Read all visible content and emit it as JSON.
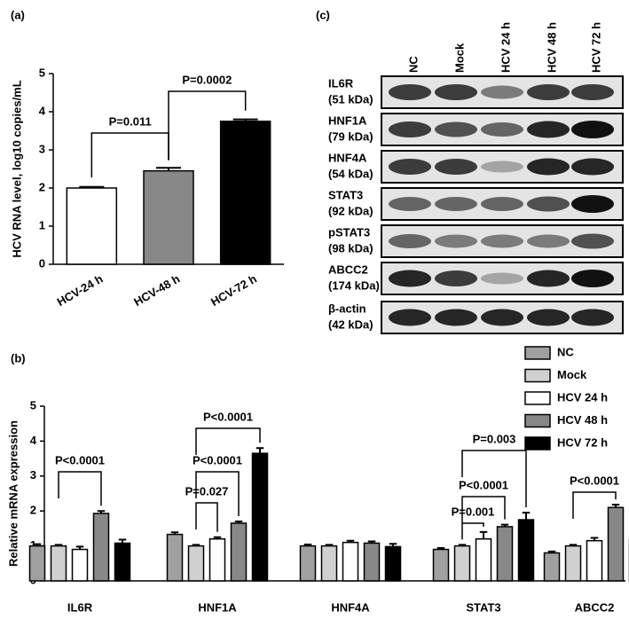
{
  "chart_data": [
    {
      "type": "bar",
      "label": "(a)",
      "y_label": "HCV RNA level, log10 copies/mL",
      "categories": [
        "HCV-24 h",
        "HCV-48 h",
        "HCV-72 h"
      ],
      "values": [
        2.0,
        2.45,
        3.75
      ],
      "errors": [
        0.03,
        0.08,
        0.05
      ],
      "colors": [
        "#ffffff",
        "#888888",
        "#000000"
      ],
      "ylim": [
        0,
        5
      ],
      "yticks": [
        0,
        1,
        2,
        3,
        4,
        5
      ],
      "annotations": [
        "P=0.011",
        "P=0.0002"
      ]
    },
    {
      "type": "grouped_bar",
      "label": "(b)",
      "y_label": "Relative mRNA expression",
      "categories": [
        "IL6R",
        "HNF1A",
        "HNF4A",
        "STAT3",
        "ABCC2"
      ],
      "series": [
        {
          "name": "NC",
          "color": "#a0a0a0",
          "values": [
            1.0,
            1.33,
            1.0,
            0.9,
            0.8
          ],
          "errors": [
            0.05,
            0.06,
            0.04,
            0.04,
            0.04
          ]
        },
        {
          "name": "Mock",
          "color": "#d0d0d0",
          "values": [
            1.0,
            1.0,
            1.0,
            1.0,
            1.0
          ],
          "errors": [
            0.03,
            0.03,
            0.03,
            0.03,
            0.03
          ]
        },
        {
          "name": "HCV 24 h",
          "color": "#ffffff",
          "values": [
            0.9,
            1.2,
            1.1,
            1.2,
            1.15
          ],
          "errors": [
            0.08,
            0.05,
            0.05,
            0.2,
            0.08
          ]
        },
        {
          "name": "HCV 48 h",
          "color": "#888888",
          "values": [
            1.93,
            1.65,
            1.08,
            1.55,
            2.1
          ],
          "errors": [
            0.07,
            0.05,
            0.05,
            0.06,
            0.08
          ]
        },
        {
          "name": "HCV 72 h",
          "color": "#000000",
          "values": [
            1.08,
            3.65,
            0.98,
            1.75,
            1.18
          ],
          "errors": [
            0.1,
            0.15,
            0.08,
            0.2,
            0.1
          ]
        }
      ],
      "ylim": [
        0,
        5
      ],
      "yticks": [
        0,
        1,
        2,
        3,
        4,
        5
      ],
      "annotations": [
        "P<0.0001",
        "P<0.0001",
        "P<0.0001",
        "P=0.027",
        "P=0.003",
        "P<0.0001",
        "P=0.001",
        "P<0.0001"
      ]
    }
  ],
  "blot": {
    "label": "(c)",
    "lanes": [
      "NC",
      "Mock",
      "HCV 24 h",
      "HCV 48 h",
      "HCV 72 h"
    ],
    "rows": [
      {
        "name": "IL6R",
        "size": "(51 kDa)"
      },
      {
        "name": "HNF1A",
        "size": "(79 kDa)"
      },
      {
        "name": "HNF4A",
        "size": "(54 kDa)"
      },
      {
        "name": "STAT3",
        "size": "(92 kDa)"
      },
      {
        "name": "pSTAT3",
        "size": "(98 kDa)"
      },
      {
        "name": "ABCC2",
        "size": "(174 kDa)"
      },
      {
        "name": "β-actin",
        "size": "(42 kDa)"
      }
    ]
  }
}
